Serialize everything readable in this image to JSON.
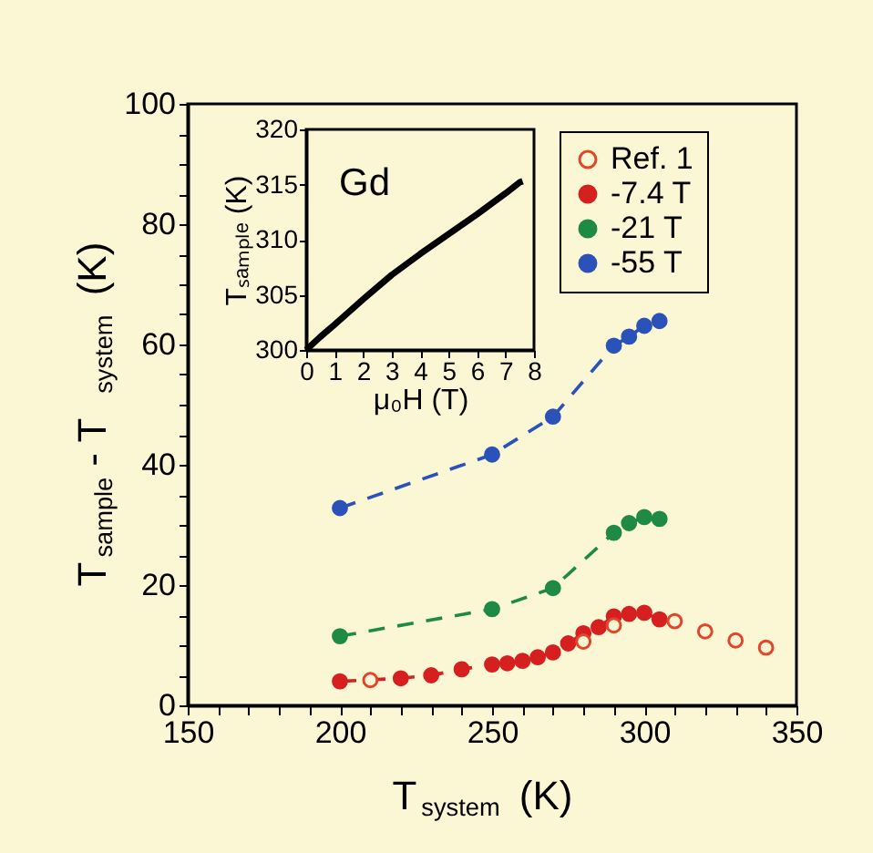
{
  "chart_data": [
    {
      "type": "scatter",
      "xlabel": "T$_{system}$ (K)",
      "ylabel": "T$_{sample}$ - T$_{system}$ (K)",
      "xlim": [
        150,
        350
      ],
      "ylim": [
        0,
        100
      ],
      "xticks": [
        150,
        {
          "value": 160,
          "label": null
        },
        {
          "value": 170,
          "label": null
        },
        {
          "value": 180,
          "label": null
        },
        {
          "value": 190,
          "label": null
        },
        200,
        {
          "value": 210,
          "label": null
        },
        {
          "value": 220,
          "label": null
        },
        {
          "value": 230,
          "label": null
        },
        {
          "value": 240,
          "label": null
        },
        250,
        {
          "value": 260,
          "label": null
        },
        {
          "value": 270,
          "label": null
        },
        {
          "value": 280,
          "label": null
        },
        {
          "value": 290,
          "label": null
        },
        300,
        {
          "value": 310,
          "label": null
        },
        {
          "value": 320,
          "label": null
        },
        {
          "value": 330,
          "label": null
        },
        {
          "value": 340,
          "label": null
        },
        350
      ],
      "yticks": [
        0,
        {
          "value": 5,
          "label": null
        },
        {
          "value": 10,
          "label": null
        },
        {
          "value": 15,
          "label": null
        },
        20,
        {
          "value": 25,
          "label": null
        },
        {
          "value": 30,
          "label": null
        },
        {
          "value": 35,
          "label": null
        },
        40,
        {
          "value": 45,
          "label": null
        },
        {
          "value": 50,
          "label": null
        },
        {
          "value": 55,
          "label": null
        },
        60,
        {
          "value": 65,
          "label": null
        },
        {
          "value": 70,
          "label": null
        },
        {
          "value": 75,
          "label": null
        },
        80,
        {
          "value": 85,
          "label": null
        },
        {
          "value": 90,
          "label": null
        },
        {
          "value": 95,
          "label": null
        },
        100
      ],
      "legend": "top right",
      "grid": false,
      "series": [
        {
          "name": "Ref. 1",
          "type": "scatter",
          "marker": "circle",
          "color": "#e2462a",
          "x": [
            210,
            280,
            290,
            310,
            320,
            330,
            340
          ],
          "values": [
            4.2,
            10.6,
            13.3,
            14,
            12.3,
            10.8,
            9.6
          ]
        },
        {
          "name": "-7.4 T",
          "type": "line",
          "line_style": "dashed",
          "marker": "circle",
          "color": "#d62020",
          "x": [
            200,
            220,
            230,
            240,
            250,
            255,
            260,
            265,
            270,
            275,
            280,
            285,
            290,
            295,
            300,
            305
          ],
          "values": [
            4,
            4.5,
            5,
            6,
            6.8,
            7,
            7.4,
            8,
            8.8,
            10.3,
            12,
            13,
            14.8,
            15.2,
            15.4,
            14.3
          ]
        },
        {
          "name": "-21 T",
          "type": "line",
          "line_style": "dashed",
          "marker": "circle",
          "color": "#1f8a45",
          "x": [
            200,
            250,
            270,
            290,
            295,
            300,
            305
          ],
          "values": [
            11.5,
            16,
            19.5,
            28.7,
            30.3,
            31.3,
            31
          ]
        },
        {
          "name": "-55 T",
          "type": "line",
          "line_style": "dashed",
          "marker": "circle",
          "color": "#2a52b8",
          "x": [
            200,
            250,
            270,
            290,
            295,
            300,
            305
          ],
          "values": [
            32.8,
            41.7,
            48,
            59.8,
            61.3,
            63.1,
            63.9
          ]
        }
      ]
    },
    {
      "type": "line",
      "xlabel": "μ₀H (T)",
      "ylabel": "Tₛₐₘₚₗₑ (K)",
      "annotations": [
        "Gd"
      ],
      "xlim": [
        0,
        8
      ],
      "ylim": [
        300,
        320
      ],
      "xticks": [
        0,
        1,
        2,
        3,
        4,
        5,
        6,
        7,
        8
      ],
      "yticks": [
        300,
        305,
        310,
        315,
        320
      ],
      "series": [
        {
          "color": "#000000",
          "line_style": "solid",
          "x": [
            0,
            0.5,
            1,
            2,
            3,
            4,
            5,
            6,
            7,
            7.5,
            7.6
          ],
          "values": [
            300,
            301.2,
            302.3,
            304.6,
            306.8,
            308.7,
            310.5,
            312.3,
            314.2,
            315.2,
            315.3
          ]
        }
      ]
    }
  ]
}
